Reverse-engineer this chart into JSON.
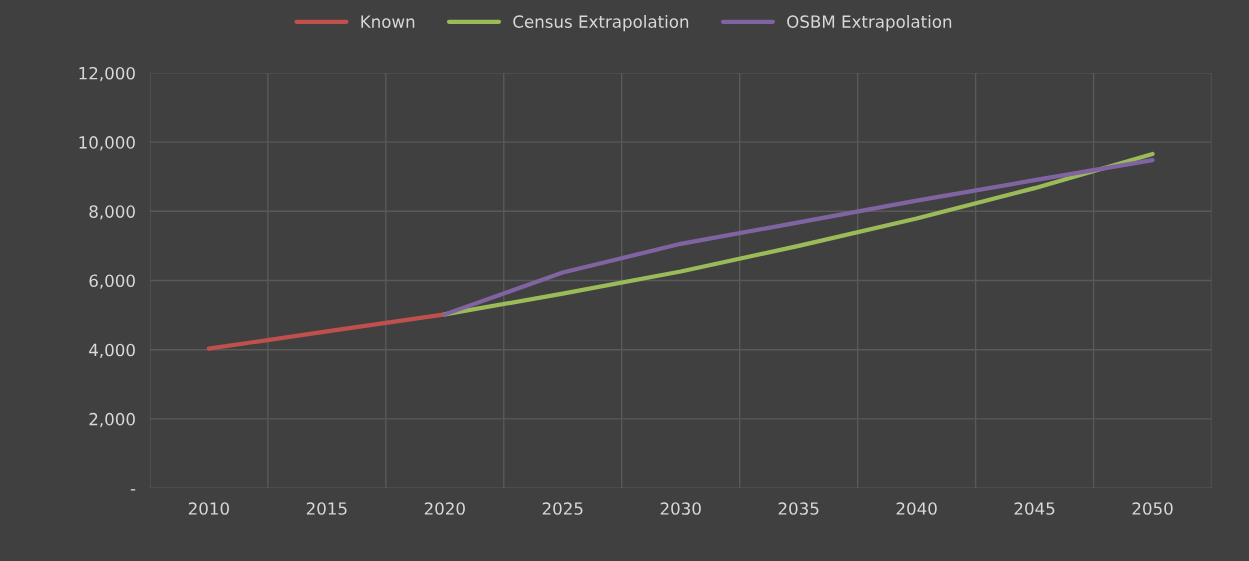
{
  "chart_data": {
    "type": "line",
    "categories": [
      "2010",
      "2015",
      "2020",
      "2025",
      "2030",
      "2035",
      "2040",
      "2045",
      "2050"
    ],
    "series": [
      {
        "name": "Known",
        "color": "#c0504d",
        "values": [
          4030,
          4530,
          5020,
          null,
          null,
          null,
          null,
          null,
          null
        ]
      },
      {
        "name": "Census Extrapolation",
        "color": "#9bbb59",
        "values": [
          null,
          null,
          5020,
          5620,
          6260,
          7000,
          7790,
          8670,
          9660
        ]
      },
      {
        "name": "OSBM Extrapolation",
        "color": "#8064a2",
        "values": [
          null,
          null,
          5020,
          6230,
          7060,
          7680,
          8310,
          8900,
          9480
        ]
      }
    ],
    "ylim": [
      0,
      12000
    ],
    "yticks": [
      {
        "value": 0,
        "label": "-"
      },
      {
        "value": 2000,
        "label": "2,000"
      },
      {
        "value": 4000,
        "label": "4,000"
      },
      {
        "value": 6000,
        "label": "6,000"
      },
      {
        "value": 8000,
        "label": "8,000"
      },
      {
        "value": 10000,
        "label": "10,000"
      },
      {
        "value": 12000,
        "label": "12,000"
      }
    ],
    "grid": true,
    "legend": "top",
    "marker": "none",
    "line_style": "solid"
  }
}
